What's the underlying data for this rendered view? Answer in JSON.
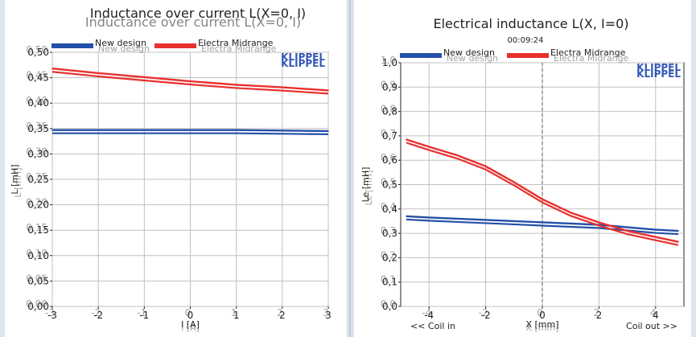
{
  "colors": {
    "background": "#ffffff",
    "divider": "#a8b4c4",
    "grid": "#c0c0c0",
    "axis": "#222222",
    "text": "#222222",
    "watermark": "#3457b6",
    "new_design": "#2350a8",
    "electra": "#e8302e",
    "cursor_line": "#909090"
  },
  "chart_data": [
    {
      "type": "line",
      "title": "Inductance over current L(X=0, I)",
      "title_ghost": "Inductance over current L(X=0, I)",
      "watermark": "KLIPPEL",
      "xlabel": "I [A]",
      "ylabel": "L [mH]",
      "xlim": [
        -3,
        3
      ],
      "ylim": [
        0,
        0.5
      ],
      "xticks": [
        "-3",
        "-2",
        "-1",
        "0",
        "1",
        "2",
        "3"
      ],
      "yticks": [
        "0,00",
        "0,05",
        "0,10",
        "0,15",
        "0,20",
        "0,25",
        "0,30",
        "0,35",
        "0,40",
        "0,45",
        "0,50"
      ],
      "grid": true,
      "legend": "top-left",
      "series": [
        {
          "name": "New design",
          "color_key": "new_design",
          "x": [
            -3,
            -2,
            -1,
            0,
            1,
            2,
            3
          ],
          "y": [
            0.347,
            0.347,
            0.347,
            0.347,
            0.347,
            0.346,
            0.345
          ]
        },
        {
          "name": "Electra Midrange",
          "color_key": "electra",
          "x": [
            -3,
            -2,
            -1,
            0,
            1,
            2,
            3
          ],
          "y": [
            0.468,
            0.459,
            0.451,
            0.443,
            0.436,
            0.431,
            0.425
          ]
        }
      ]
    },
    {
      "type": "line",
      "title": "Electrical inductance L(X, I=0)",
      "subtitle": "00:09:24",
      "watermark": "KLIPPEL",
      "xlabel": "X [mm]",
      "ylabel": "Le [mH]",
      "x_annotation_left": "<< Coil in",
      "x_annotation_right": "Coil out >>",
      "xlim": [
        -5,
        5
      ],
      "ylim": [
        0,
        1.0
      ],
      "xticks": [
        "-4",
        "-2",
        "0",
        "2",
        "4"
      ],
      "xtick_values": [
        -4,
        -2,
        0,
        2,
        4
      ],
      "yticks": [
        "0,0",
        "0,1",
        "0,2",
        "0,3",
        "0,4",
        "0,5",
        "0,6",
        "0,7",
        "0,8",
        "0,9",
        "1,0"
      ],
      "grid": true,
      "legend": "top-left",
      "cursor_x": 0,
      "series": [
        {
          "name": "New design",
          "color_key": "new_design",
          "x": [
            -4.8,
            -4,
            -3,
            -2,
            -1,
            0,
            1,
            2,
            3,
            4,
            4.8
          ],
          "y": [
            0.37,
            0.365,
            0.36,
            0.355,
            0.35,
            0.345,
            0.34,
            0.335,
            0.325,
            0.315,
            0.31
          ]
        },
        {
          "name": "Electra Midrange",
          "color_key": "electra",
          "x": [
            -4.8,
            -4,
            -3,
            -2,
            -1,
            0,
            1,
            2,
            3,
            4,
            4.8
          ],
          "y": [
            0.685,
            0.655,
            0.62,
            0.575,
            0.51,
            0.44,
            0.385,
            0.345,
            0.31,
            0.285,
            0.265
          ]
        }
      ]
    }
  ]
}
